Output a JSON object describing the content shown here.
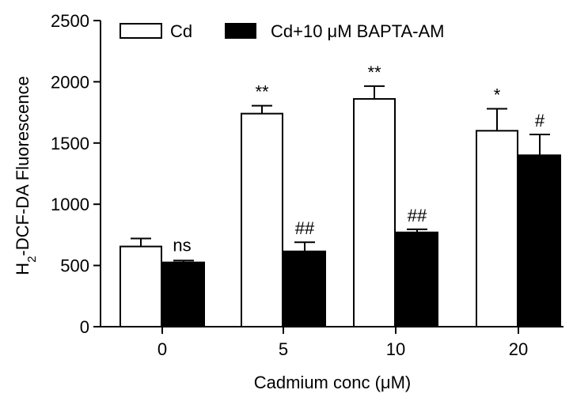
{
  "chart_data": {
    "type": "bar",
    "title": "",
    "xlabel": "Cadmium conc (μM)",
    "ylabel": "H2-DCF-DA Fluorescence",
    "ylabel_parts": {
      "pre": "H",
      "sub": "2",
      "post": "-DCF-DA Fluorescence"
    },
    "ylim": [
      0,
      2500
    ],
    "yticks": [
      0,
      500,
      1000,
      1500,
      2000,
      2500
    ],
    "categories": [
      "0",
      "5",
      "10",
      "20"
    ],
    "legend_position": "top-left",
    "grid": false,
    "series": [
      {
        "name": "Cd",
        "fill": "#ffffff",
        "values": [
          655,
          1740,
          1860,
          1600
        ],
        "errors": [
          65,
          65,
          105,
          180
        ],
        "annotations": [
          "",
          "**",
          "**",
          "*"
        ]
      },
      {
        "name": "Cd+10 μM BAPTA-AM",
        "fill": "#000000",
        "values": [
          525,
          615,
          770,
          1400
        ],
        "errors": [
          15,
          75,
          25,
          170
        ],
        "annotations": [
          "ns",
          "##",
          "##",
          "#"
        ]
      }
    ]
  }
}
